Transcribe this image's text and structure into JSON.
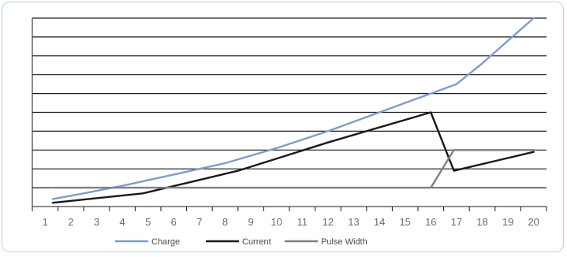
{
  "chart_data": {
    "type": "line",
    "title": "",
    "xlabel": "",
    "ylabel": "",
    "categories": [
      "1",
      "2",
      "3",
      "4",
      "5",
      "6",
      "7",
      "8",
      "9",
      "10",
      "11",
      "12",
      "13",
      "14",
      "15",
      "16",
      "17",
      "18",
      "19",
      "20"
    ],
    "x": [
      1.3,
      4.8,
      8.5,
      12.0,
      16.0,
      16.9,
      20.0
    ],
    "ylim": [
      0,
      10
    ],
    "grid": true,
    "legend_position": "bottom",
    "series": [
      {
        "name": "Charge",
        "color": "#7f9ccb",
        "points": [
          [
            1.3,
            0.4
          ],
          [
            2.5,
            0.7
          ],
          [
            4,
            1.1
          ],
          [
            6,
            1.7
          ],
          [
            8,
            2.3
          ],
          [
            10,
            3.1
          ],
          [
            12,
            4.0
          ],
          [
            14,
            5.0
          ],
          [
            16,
            6.0
          ],
          [
            17,
            6.5
          ],
          [
            18,
            7.6
          ],
          [
            19,
            8.8
          ],
          [
            20,
            10.0
          ]
        ]
      },
      {
        "name": "Current",
        "color": "#1a1a1a",
        "points": [
          [
            1.3,
            0.2
          ],
          [
            4.8,
            0.7
          ],
          [
            8.5,
            1.9
          ],
          [
            12,
            3.4
          ],
          [
            16,
            5.0
          ],
          [
            16.9,
            1.9
          ],
          [
            20,
            2.9
          ]
        ]
      },
      {
        "name": "Pulse Width",
        "color": "#808080",
        "points": [
          [
            1.3,
            1.0
          ],
          [
            16.0,
            1.0
          ],
          [
            16.9,
            3.0
          ],
          [
            20,
            3.0
          ]
        ]
      }
    ]
  }
}
